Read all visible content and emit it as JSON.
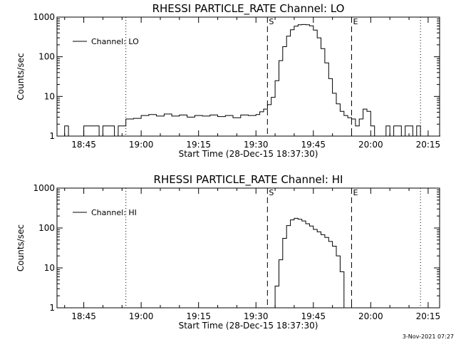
{
  "stamp": "3-Nov-2021 07:27",
  "chart_data": [
    {
      "type": "line",
      "title": "RHESSI PARTICLE_RATE Channel: LO",
      "xlabel": "Start Time (28-Dec-15 18:37:30)",
      "ylabel": "Counts/sec",
      "yscale": "log",
      "ylim": [
        1,
        1000
      ],
      "xlim": [
        "18:38",
        "20:18"
      ],
      "x_ticks": [
        "18:45",
        "19:00",
        "19:15",
        "19:30",
        "19:45",
        "20:00",
        "20:15"
      ],
      "y_ticks": [
        "1",
        "10",
        "100",
        "1000"
      ],
      "legend": {
        "label": "Channel: LO",
        "position": "top-left"
      },
      "markers": [
        {
          "label": "",
          "time": "18:56",
          "style": "dotted"
        },
        {
          "label": "S",
          "time": "19:33",
          "style": "dashed"
        },
        {
          "label": "E",
          "time": "19:55",
          "style": "dashed"
        },
        {
          "label": "",
          "time": "20:13",
          "style": "dotted"
        }
      ],
      "series": [
        {
          "x": [
            "18:38",
            "18:39",
            "18:40",
            "18:41",
            "18:42",
            "18:43",
            "18:44",
            "18:45",
            "18:46",
            "18:47",
            "18:48",
            "18:49",
            "18:50",
            "18:51",
            "18:52",
            "18:53",
            "18:54",
            "18:55",
            "18:56",
            "18:58",
            "19:00",
            "19:02",
            "19:04",
            "19:06",
            "19:08",
            "19:10",
            "19:12",
            "19:14",
            "19:16",
            "19:18",
            "19:20",
            "19:22",
            "19:24",
            "19:26",
            "19:28",
            "19:30",
            "19:31",
            "19:32",
            "19:33",
            "19:34",
            "19:35",
            "19:36",
            "19:37",
            "19:38",
            "19:39",
            "19:40",
            "19:41",
            "19:42",
            "19:43",
            "19:44",
            "19:45",
            "19:46",
            "19:47",
            "19:48",
            "19:49",
            "19:50",
            "19:51",
            "19:52",
            "19:53",
            "19:54",
            "19:55",
            "19:56",
            "19:57",
            "19:58",
            "19:59",
            "20:00",
            "20:01",
            "20:02",
            "20:03",
            "20:04",
            "20:05",
            "20:06",
            "20:07",
            "20:08",
            "20:09",
            "20:10",
            "20:11",
            "20:12",
            "20:13",
            "20:14",
            "20:15",
            "20:16",
            "20:17",
            "20:18"
          ],
          "y": [
            1,
            1,
            1.8,
            1,
            1,
            1,
            1,
            1.8,
            1.8,
            1.8,
            1.8,
            1,
            1.8,
            1.8,
            1.8,
            1,
            1.8,
            1.8,
            2.7,
            2.8,
            3.3,
            3.5,
            3.2,
            3.6,
            3.2,
            3.4,
            3.0,
            3.3,
            3.2,
            3.4,
            3.1,
            3.3,
            2.9,
            3.4,
            3.3,
            3.5,
            4.1,
            4.8,
            6.2,
            9.5,
            25,
            80,
            180,
            330,
            480,
            590,
            640,
            650,
            640,
            600,
            470,
            300,
            160,
            70,
            28,
            12,
            6.5,
            4.2,
            3.3,
            2.9,
            2.7,
            1.8,
            2.7,
            4.8,
            4.2,
            1.8,
            1,
            1,
            1,
            1.8,
            1,
            1.8,
            1.8,
            1,
            1.8,
            1.8,
            1,
            1.8,
            1,
            1,
            1,
            1,
            1,
            1
          ]
        }
      ]
    },
    {
      "type": "line",
      "title": "RHESSI PARTICLE_RATE Channel: HI",
      "xlabel": "Start Time (28-Dec-15 18:37:30)",
      "ylabel": "Counts/sec",
      "yscale": "log",
      "ylim": [
        1,
        1000
      ],
      "xlim": [
        "18:38",
        "20:18"
      ],
      "x_ticks": [
        "18:45",
        "19:00",
        "19:15",
        "19:30",
        "19:45",
        "20:00",
        "20:15"
      ],
      "y_ticks": [
        "1",
        "10",
        "100",
        "1000"
      ],
      "legend": {
        "label": "Channel: HI",
        "position": "top-left"
      },
      "markers": [
        {
          "label": "",
          "time": "18:56",
          "style": "dotted"
        },
        {
          "label": "S",
          "time": "19:33",
          "style": "dashed"
        },
        {
          "label": "E",
          "time": "19:55",
          "style": "dashed"
        },
        {
          "label": "",
          "time": "20:13",
          "style": "dotted"
        }
      ],
      "series": [
        {
          "x": [
            "19:34",
            "19:35",
            "19:36",
            "19:37",
            "19:38",
            "19:39",
            "19:40",
            "19:41",
            "19:42",
            "19:43",
            "19:44",
            "19:45",
            "19:46",
            "19:47",
            "19:48",
            "19:49",
            "19:50",
            "19:51",
            "19:52",
            "19:53"
          ],
          "y": [
            1,
            3.5,
            16,
            55,
            115,
            160,
            175,
            165,
            150,
            128,
            112,
            92,
            80,
            68,
            58,
            46,
            35,
            20,
            8,
            1
          ]
        }
      ]
    }
  ]
}
